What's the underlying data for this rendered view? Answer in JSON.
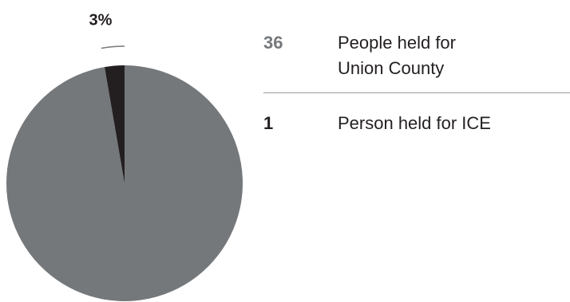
{
  "chart_data": {
    "type": "pie",
    "categories": [
      "People held for Union County",
      "Person held for ICE"
    ],
    "values": [
      36,
      1
    ],
    "colors": [
      "#75787b",
      "#231f20"
    ],
    "annotations": [
      {
        "value": 3,
        "label": "3%"
      }
    ]
  }
}
